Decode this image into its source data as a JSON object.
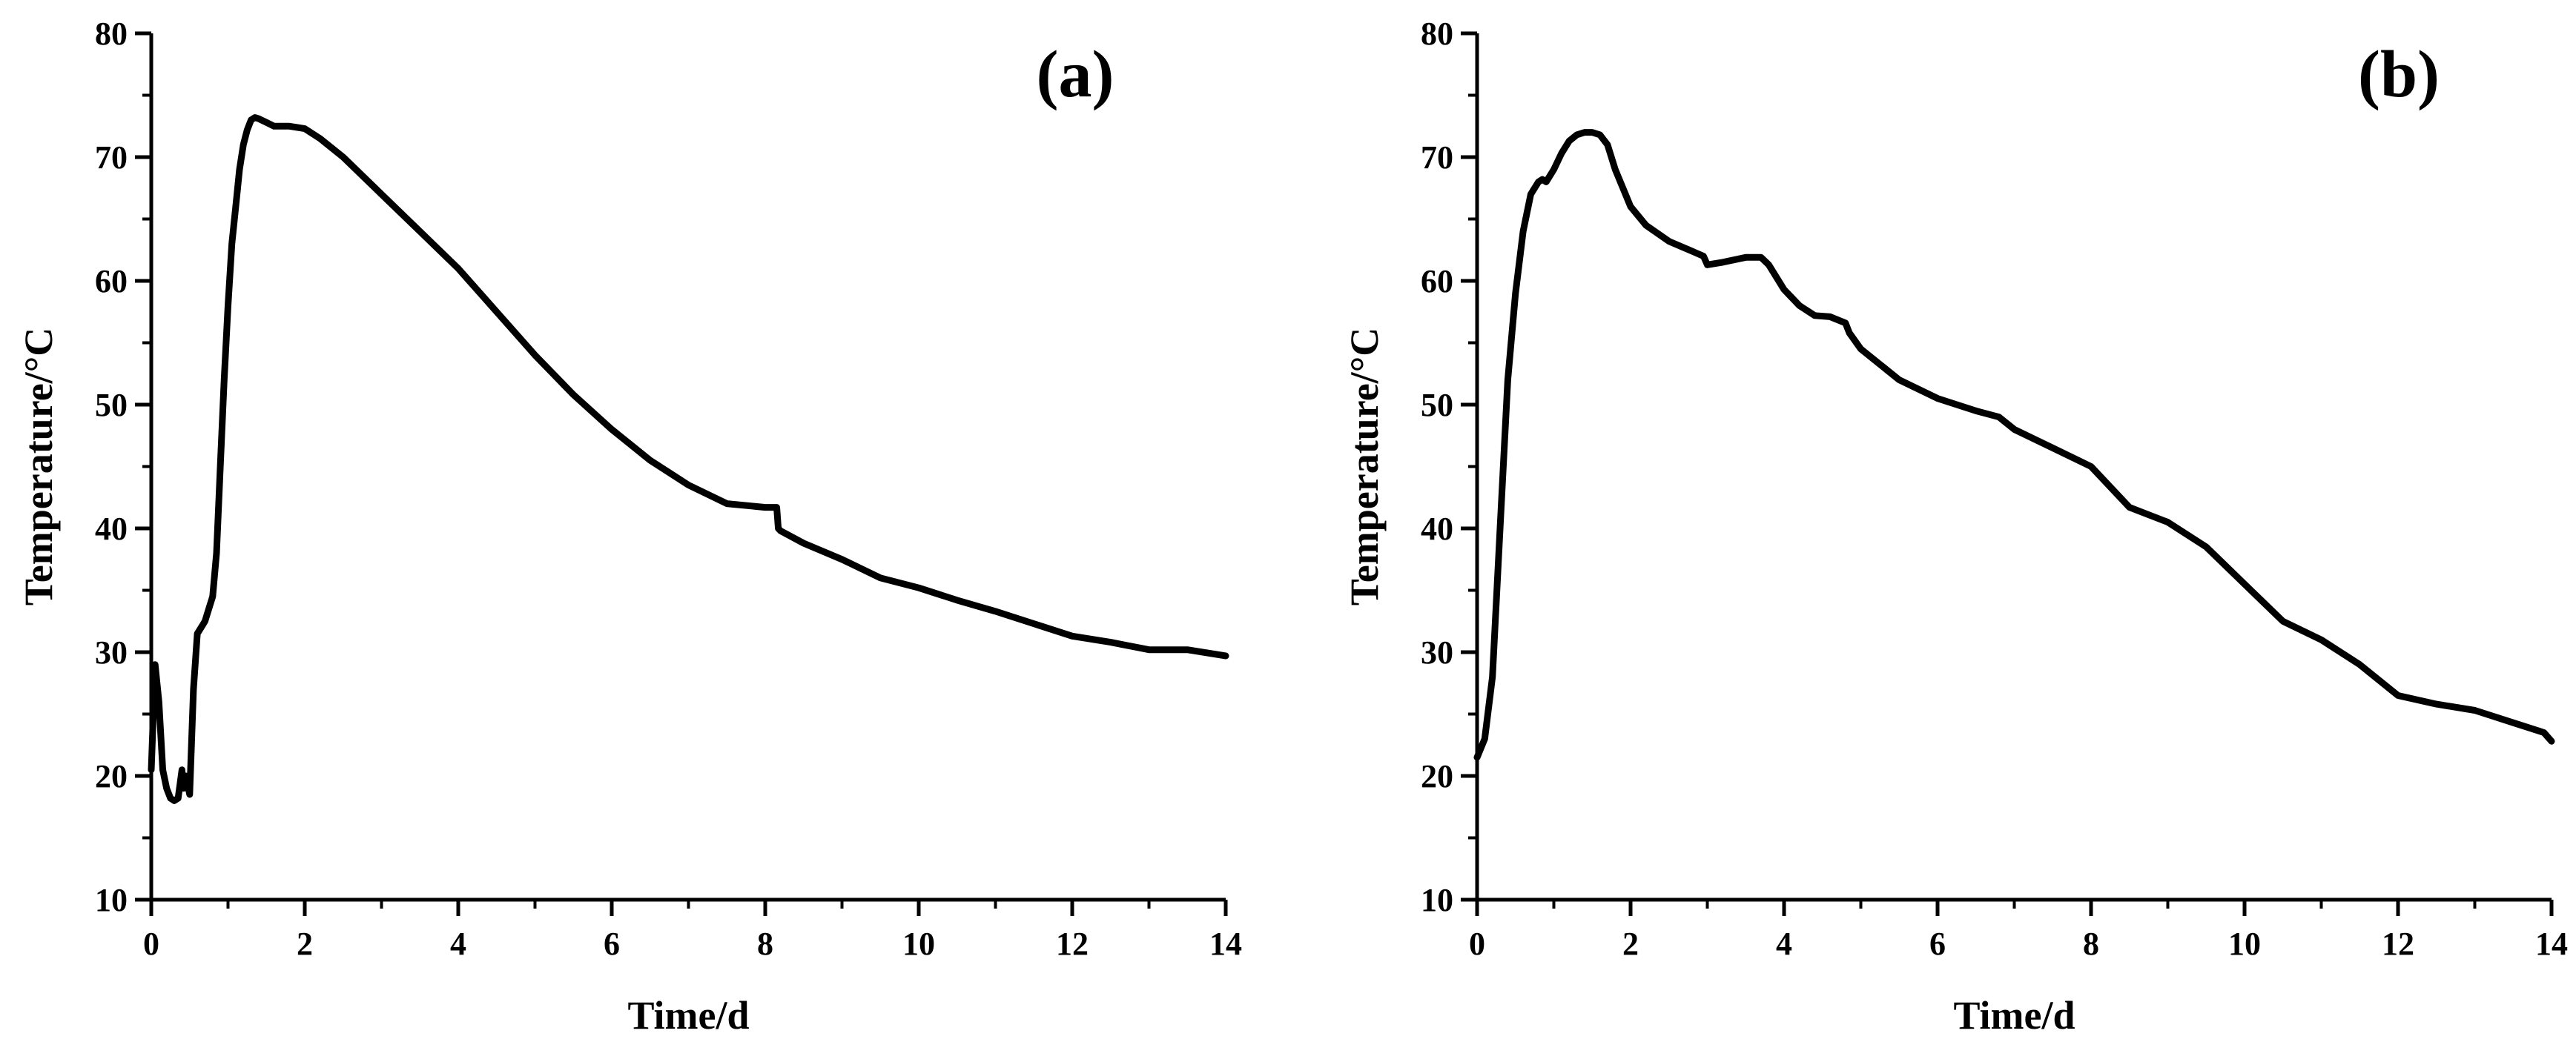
{
  "chart_data": [
    {
      "type": "line",
      "panel_label": "(a)",
      "xlabel": "Time/d",
      "ylabel": "Temperature/°C",
      "xlim": [
        0,
        14
      ],
      "ylim": [
        10,
        80
      ],
      "xticks": [
        0,
        2,
        4,
        6,
        8,
        10,
        12,
        14
      ],
      "yticks": [
        10,
        20,
        30,
        40,
        50,
        60,
        70,
        80
      ],
      "grid": false,
      "series": [
        {
          "color": "#000000",
          "x": [
            0,
            0.05,
            0.1,
            0.15,
            0.2,
            0.25,
            0.3,
            0.35,
            0.4,
            0.42,
            0.45,
            0.5,
            0.55,
            0.6,
            0.65,
            0.7,
            0.75,
            0.8,
            0.85,
            0.9,
            0.95,
            1.0,
            1.05,
            1.1,
            1.15,
            1.2,
            1.25,
            1.3,
            1.35,
            1.4,
            1.5,
            1.6,
            1.7,
            1.8,
            2.0,
            2.2,
            2.5,
            3.0,
            3.5,
            4.0,
            4.5,
            5.0,
            5.5,
            6.0,
            6.5,
            7.0,
            7.5,
            8.0,
            8.15,
            8.17,
            8.2,
            8.5,
            9.0,
            9.5,
            10.0,
            10.5,
            11.0,
            11.5,
            12.0,
            12.5,
            13.0,
            13.5,
            14.0
          ],
          "y": [
            20.5,
            29,
            26,
            20.5,
            19,
            18.2,
            18,
            18.2,
            20.5,
            19,
            20,
            18.5,
            27,
            31.5,
            32,
            32.5,
            33.5,
            34.5,
            38,
            45,
            52,
            58,
            63,
            66,
            69,
            71,
            72.2,
            73,
            73.2,
            73.1,
            72.8,
            72.5,
            72.5,
            72.5,
            72.3,
            71.5,
            70,
            67,
            64,
            61,
            57.5,
            54,
            50.8,
            48,
            45.5,
            43.5,
            42,
            41.7,
            41.7,
            40,
            39.8,
            38.8,
            37.5,
            36,
            35.2,
            34.2,
            33.3,
            32.3,
            31.3,
            30.8,
            30.2,
            30.2,
            29.7
          ]
        }
      ]
    },
    {
      "type": "line",
      "panel_label": "(b)",
      "xlabel": "Time/d",
      "ylabel": "Temperature/°C",
      "xlim": [
        0,
        14
      ],
      "ylim": [
        10,
        80
      ],
      "xticks": [
        0,
        2,
        4,
        6,
        8,
        10,
        12,
        14
      ],
      "yticks": [
        10,
        20,
        30,
        40,
        50,
        60,
        70,
        80
      ],
      "grid": false,
      "series": [
        {
          "color": "#000000",
          "x": [
            0,
            0.1,
            0.2,
            0.3,
            0.4,
            0.5,
            0.6,
            0.7,
            0.8,
            0.85,
            0.9,
            1.0,
            1.1,
            1.2,
            1.3,
            1.4,
            1.5,
            1.6,
            1.7,
            1.8,
            1.9,
            2.0,
            2.2,
            2.5,
            2.8,
            2.95,
            3.0,
            3.2,
            3.5,
            3.7,
            3.8,
            4.0,
            4.2,
            4.4,
            4.6,
            4.8,
            4.85,
            5.0,
            5.5,
            6.0,
            6.5,
            6.8,
            7.0,
            7.5,
            8.0,
            8.5,
            9.0,
            9.5,
            10.0,
            10.5,
            11.0,
            11.5,
            12.0,
            12.5,
            13.0,
            13.5,
            13.9,
            14.0
          ],
          "y": [
            21.5,
            23,
            28,
            40,
            52,
            59,
            64,
            67,
            68,
            68.2,
            68,
            69,
            70.3,
            71.3,
            71.8,
            72,
            72,
            71.8,
            71,
            69,
            67.5,
            66,
            64.5,
            63.2,
            62.4,
            62,
            61.3,
            61.5,
            61.9,
            61.9,
            61.3,
            59.3,
            58,
            57.2,
            57.1,
            56.6,
            55.8,
            54.5,
            52,
            50.5,
            49.5,
            49,
            48,
            46.5,
            45,
            41.7,
            40.5,
            38.5,
            35.5,
            32.5,
            31,
            29,
            26.5,
            25.8,
            25.3,
            24.3,
            23.5,
            22.8
          ]
        }
      ]
    }
  ]
}
